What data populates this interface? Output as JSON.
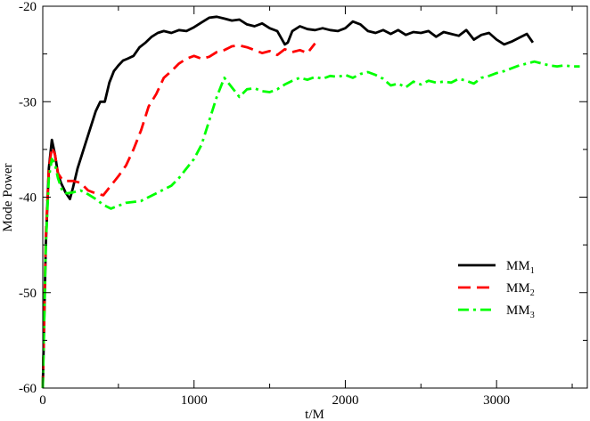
{
  "chart_data": {
    "type": "line",
    "xlabel": "t/M",
    "ylabel": "Mode Power",
    "xlim": [
      0,
      3600
    ],
    "ylim": [
      -60,
      -20
    ],
    "xticks": [
      0,
      1000,
      2000,
      3000
    ],
    "yticks": [
      -60,
      -50,
      -40,
      -30,
      -20
    ],
    "xtick_labels": [
      "0",
      "1000",
      "2000",
      "3000"
    ],
    "ytick_labels": [
      "-60",
      "-50",
      "-40",
      "-30",
      "-20"
    ],
    "legend_position": "lower-right",
    "grid": false,
    "series": [
      {
        "name": "MM",
        "subscript": "1",
        "color": "#000000",
        "dash": "solid",
        "x": [
          0,
          20,
          40,
          60,
          80,
          100,
          120,
          150,
          180,
          200,
          230,
          260,
          290,
          320,
          350,
          380,
          410,
          440,
          470,
          500,
          530,
          560,
          600,
          640,
          680,
          720,
          760,
          800,
          850,
          900,
          950,
          1000,
          1050,
          1100,
          1150,
          1200,
          1250,
          1300,
          1350,
          1400,
          1450,
          1500,
          1550,
          1600,
          1620,
          1650,
          1700,
          1750,
          1800,
          1850,
          1900,
          1950,
          2000,
          2050,
          2100,
          2150,
          2200,
          2250,
          2300,
          2350,
          2400,
          2450,
          2500,
          2550,
          2600,
          2650,
          2700,
          2750,
          2800,
          2850,
          2900,
          2950,
          3000,
          3050,
          3100,
          3150,
          3200,
          3240
        ],
        "y": [
          -60,
          -45,
          -37,
          -34,
          -35.5,
          -37.5,
          -38.5,
          -39.5,
          -40.2,
          -39,
          -37,
          -35.5,
          -34,
          -32.5,
          -31,
          -30,
          -30,
          -28,
          -26.8,
          -26.2,
          -25.7,
          -25.5,
          -25.2,
          -24.3,
          -23.8,
          -23.2,
          -22.8,
          -22.6,
          -22.8,
          -22.5,
          -22.6,
          -22.2,
          -21.7,
          -21.2,
          -21.1,
          -21.3,
          -21.5,
          -21.4,
          -21.9,
          -22.1,
          -21.8,
          -22.3,
          -22.6,
          -24,
          -23.8,
          -22.6,
          -22.1,
          -22.4,
          -22.5,
          -22.3,
          -22.5,
          -22.6,
          -22.3,
          -21.6,
          -21.9,
          -22.6,
          -22.8,
          -22.5,
          -22.9,
          -22.5,
          -23,
          -22.7,
          -22.8,
          -22.6,
          -23.2,
          -22.7,
          -22.9,
          -23.1,
          -22.5,
          -23.5,
          -23,
          -22.8,
          -23.5,
          -24,
          -23.7,
          -23.3,
          -22.9,
          -23.8
        ]
      },
      {
        "name": "MM",
        "subscript": "2",
        "color": "#ff0000",
        "dash": "dashed",
        "x": [
          0,
          20,
          40,
          60,
          80,
          100,
          130,
          160,
          200,
          250,
          300,
          350,
          400,
          450,
          500,
          550,
          600,
          650,
          700,
          750,
          800,
          850,
          900,
          950,
          1000,
          1050,
          1100,
          1150,
          1200,
          1250,
          1300,
          1350,
          1400,
          1450,
          1500,
          1550,
          1600,
          1650,
          1700,
          1750,
          1800
        ],
        "y": [
          -60,
          -44,
          -37,
          -34.8,
          -35.5,
          -37.5,
          -38.2,
          -38.3,
          -38.3,
          -38.5,
          -39.3,
          -39.6,
          -39.8,
          -38.8,
          -37.8,
          -36.7,
          -35,
          -33,
          -30.5,
          -29.2,
          -27.5,
          -26.8,
          -26,
          -25.5,
          -25.2,
          -25.5,
          -25.3,
          -24.8,
          -24.6,
          -24.2,
          -24.1,
          -24.3,
          -24.6,
          -24.9,
          -24.7,
          -25.1,
          -24.5,
          -24.8,
          -24.6,
          -24.9,
          -23.9
        ]
      },
      {
        "name": "MM",
        "subscript": "3",
        "color": "#00ff00",
        "dash": "dashdot",
        "x": [
          0,
          20,
          40,
          60,
          80,
          100,
          130,
          160,
          200,
          250,
          300,
          350,
          400,
          450,
          500,
          550,
          600,
          650,
          700,
          750,
          800,
          850,
          900,
          950,
          1000,
          1050,
          1100,
          1150,
          1200,
          1250,
          1300,
          1350,
          1400,
          1450,
          1500,
          1550,
          1600,
          1650,
          1700,
          1750,
          1800,
          1850,
          1900,
          1950,
          2000,
          2050,
          2100,
          2150,
          2200,
          2250,
          2300,
          2350,
          2400,
          2450,
          2500,
          2550,
          2600,
          2650,
          2700,
          2750,
          2800,
          2850,
          2900,
          2950,
          3000,
          3050,
          3100,
          3150,
          3200,
          3250,
          3300,
          3350,
          3400,
          3450,
          3500,
          3550
        ],
        "y": [
          -60,
          -45,
          -38,
          -36,
          -36.5,
          -38,
          -39.4,
          -39.6,
          -39.5,
          -39.3,
          -39.7,
          -40.2,
          -40.8,
          -41.2,
          -40.9,
          -40.6,
          -40.5,
          -40.4,
          -40,
          -39.6,
          -39.2,
          -38.8,
          -38,
          -37,
          -36,
          -34.5,
          -32,
          -29.5,
          -27.5,
          -28.5,
          -29.5,
          -28.7,
          -28.6,
          -28.9,
          -29,
          -28.7,
          -28.2,
          -27.8,
          -27.5,
          -27.7,
          -27.4,
          -27.6,
          -27.3,
          -27.4,
          -27.2,
          -27.5,
          -27.1,
          -26.9,
          -27.2,
          -27.6,
          -28.3,
          -28.1,
          -28.5,
          -27.9,
          -28.2,
          -27.8,
          -28,
          -27.9,
          -28,
          -27.6,
          -27.8,
          -28.1,
          -27.5,
          -27.3,
          -27,
          -26.8,
          -26.5,
          -26.2,
          -26,
          -25.8,
          -26,
          -26.2,
          -26.3,
          -26.2,
          -26.3,
          -26.3
        ]
      }
    ]
  }
}
